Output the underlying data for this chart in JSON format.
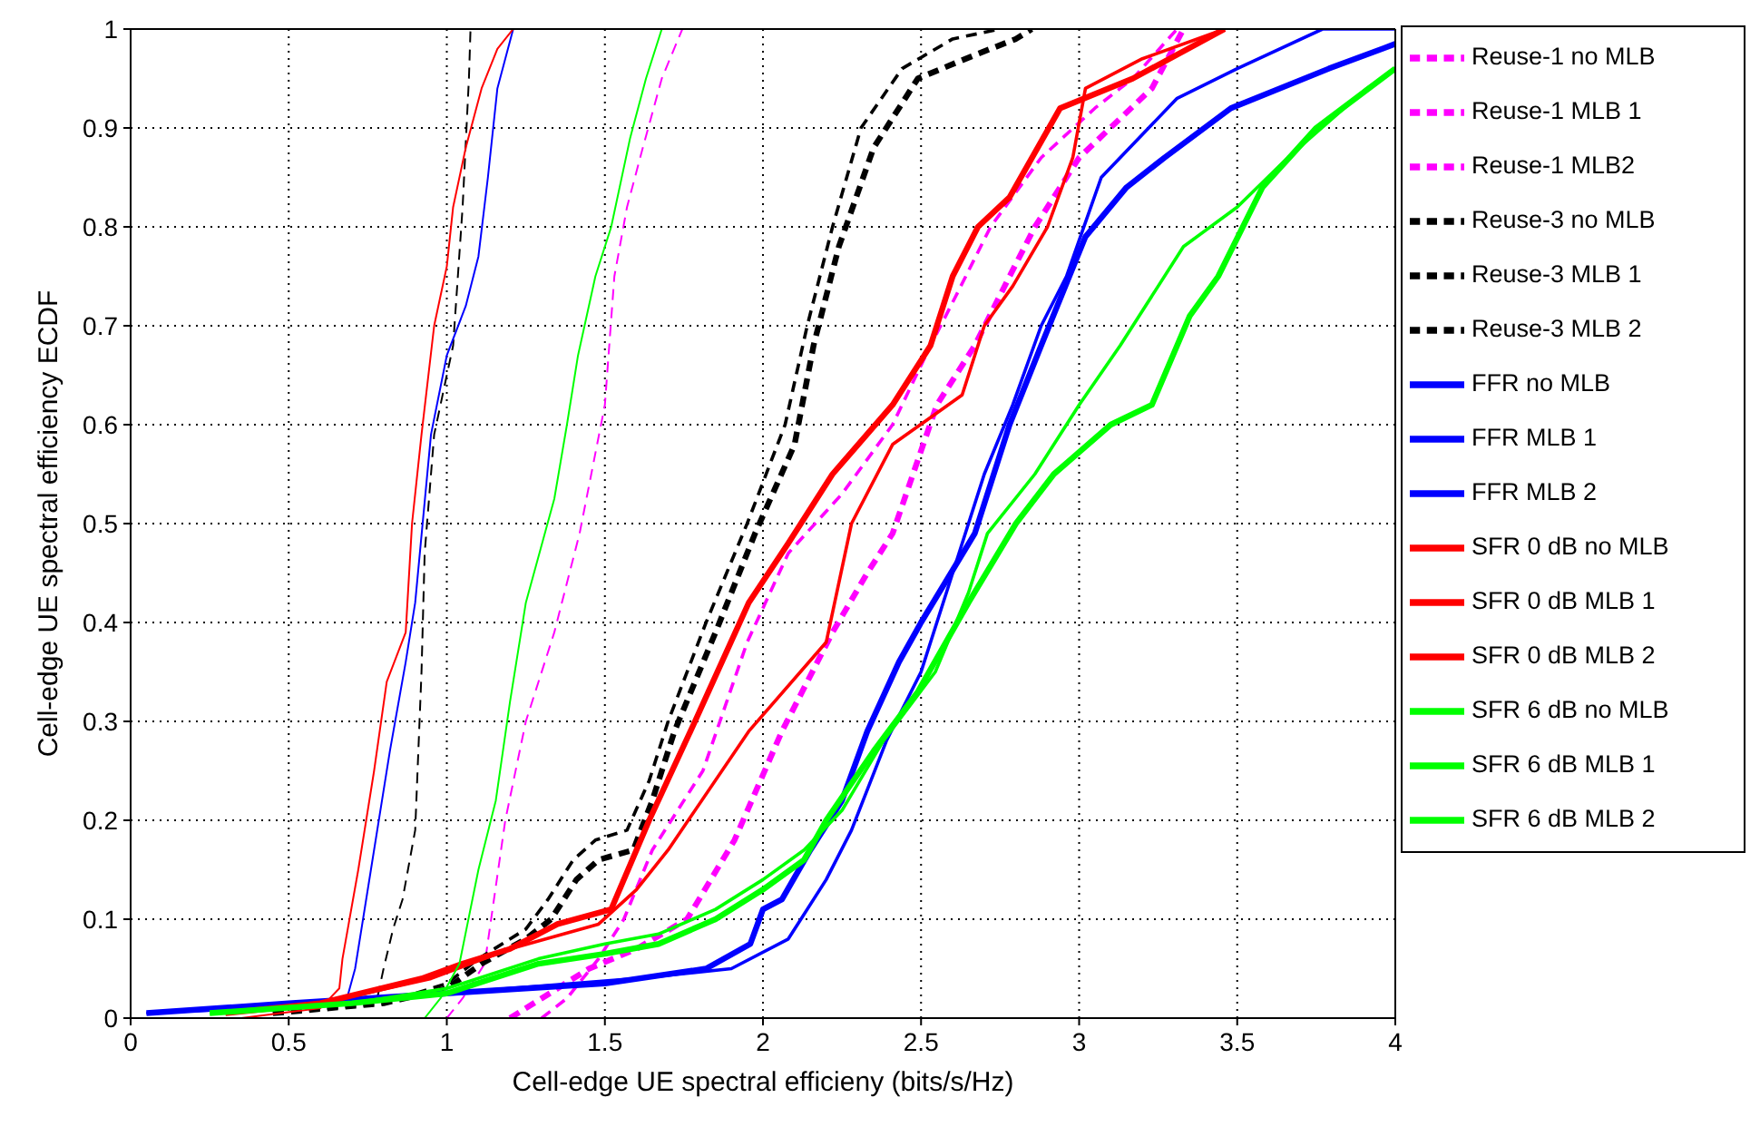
{
  "chart_data": {
    "type": "line",
    "xlabel": "Cell-edge UE spectral efficieny (bits/s/Hz)",
    "ylabel": "Cell-edge UE spectral efficiency ECDF",
    "xlim": [
      0,
      4
    ],
    "xticks": [
      0,
      0.5,
      1,
      1.5,
      2,
      2.5,
      3,
      3.5,
      4
    ],
    "ylim": [
      0,
      1
    ],
    "yticks": [
      0,
      0.1,
      0.2,
      0.3,
      0.4,
      0.5,
      0.6,
      0.7,
      0.8,
      0.9,
      1
    ],
    "grid": true,
    "legend": "top right",
    "marker": "none",
    "series": [
      {
        "name": "Reuse-1 no MLB",
        "color": "#ff00ff",
        "line_style": "dashed",
        "x": [
          1.0,
          1.05,
          1.12,
          1.185,
          1.25,
          1.34,
          1.42,
          1.5,
          1.53,
          1.57,
          1.62,
          1.68,
          1.745
        ],
        "values": [
          0,
          0.02,
          0.055,
          0.2,
          0.3,
          0.39,
          0.49,
          0.62,
          0.75,
          0.82,
          0.88,
          0.95,
          1.0
        ]
      },
      {
        "name": "Reuse-1 MLB 1",
        "color": "#ff00ff",
        "line_style": "dashed",
        "x": [
          1.3,
          1.38,
          1.48,
          1.56,
          1.65,
          1.81,
          1.95,
          2.08,
          2.25,
          2.41,
          2.53,
          2.61,
          2.72,
          2.88,
          3.05,
          3.17,
          3.31
        ],
        "values": [
          0,
          0.02,
          0.06,
          0.1,
          0.17,
          0.25,
          0.38,
          0.47,
          0.53,
          0.6,
          0.68,
          0.73,
          0.8,
          0.87,
          0.92,
          0.95,
          1.0
        ]
      },
      {
        "name": "Reuse-1 MLB2",
        "color": "#ff00ff",
        "line_style": "dashed",
        "x": [
          1.2,
          1.3,
          1.45,
          1.6,
          1.76,
          1.91,
          2.06,
          2.22,
          2.33,
          2.41,
          2.55,
          2.67,
          2.78,
          2.86,
          3.0,
          3.23,
          3.33
        ],
        "values": [
          0,
          0.02,
          0.05,
          0.07,
          0.1,
          0.18,
          0.29,
          0.39,
          0.45,
          0.49,
          0.62,
          0.68,
          0.75,
          0.8,
          0.87,
          0.94,
          1.0
        ]
      },
      {
        "name": "Reuse-3 no MLB",
        "color": "#000000",
        "line_style": "dashed",
        "x": [
          0.5,
          0.78,
          0.8,
          0.83,
          0.86,
          0.9,
          0.92,
          0.93,
          0.96,
          1.02,
          1.05,
          1.07,
          1.075
        ],
        "values": [
          0.01,
          0.02,
          0.05,
          0.09,
          0.12,
          0.19,
          0.35,
          0.47,
          0.59,
          0.68,
          0.82,
          0.95,
          1.0
        ]
      },
      {
        "name": "Reuse-3 MLB 1",
        "color": "#000000",
        "line_style": "dashed",
        "x": [
          0.45,
          0.8,
          1.0,
          1.1,
          1.25,
          1.32,
          1.4,
          1.47,
          1.57,
          1.64,
          1.7,
          1.82,
          1.95,
          2.07,
          2.14,
          2.22,
          2.31,
          2.44,
          2.6,
          2.75
        ],
        "values": [
          0.005,
          0.015,
          0.035,
          0.06,
          0.09,
          0.12,
          0.16,
          0.18,
          0.19,
          0.24,
          0.3,
          0.4,
          0.5,
          0.6,
          0.7,
          0.8,
          0.9,
          0.96,
          0.99,
          1.0
        ]
      },
      {
        "name": "Reuse-3 MLB 2",
        "color": "#000000",
        "line_style": "dashed",
        "x": [
          0.45,
          0.8,
          1.0,
          1.11,
          1.25,
          1.33,
          1.41,
          1.48,
          1.59,
          1.65,
          1.72,
          1.85,
          1.975,
          2.1,
          2.16,
          2.24,
          2.35,
          2.49,
          2.68,
          2.8,
          2.85
        ],
        "values": [
          0.005,
          0.015,
          0.03,
          0.055,
          0.08,
          0.1,
          0.14,
          0.16,
          0.17,
          0.22,
          0.29,
          0.39,
          0.49,
          0.58,
          0.68,
          0.78,
          0.88,
          0.95,
          0.975,
          0.99,
          1.0
        ]
      },
      {
        "name": "FFR no MLB",
        "color": "#0000ff",
        "line_style": "solid",
        "x": [
          0.05,
          0.5,
          0.68,
          0.71,
          0.76,
          0.82,
          0.87,
          0.9,
          0.95,
          1.0,
          1.06,
          1.1,
          1.13,
          1.16,
          1.21
        ],
        "values": [
          0.005,
          0.01,
          0.015,
          0.05,
          0.15,
          0.27,
          0.36,
          0.42,
          0.59,
          0.67,
          0.72,
          0.77,
          0.85,
          0.94,
          1.0
        ]
      },
      {
        "name": "FFR MLB 1",
        "color": "#0000ff",
        "line_style": "solid",
        "x": [
          0.05,
          0.6,
          1.2,
          1.6,
          1.9,
          2.08,
          2.2,
          2.28,
          2.39,
          2.5,
          2.57,
          2.7,
          2.79,
          2.88,
          2.96,
          3.07,
          3.31,
          3.5,
          3.77,
          4.0
        ],
        "values": [
          0.005,
          0.015,
          0.03,
          0.04,
          0.05,
          0.08,
          0.14,
          0.19,
          0.28,
          0.35,
          0.42,
          0.55,
          0.62,
          0.7,
          0.75,
          0.85,
          0.93,
          0.96,
          1.0,
          1.0
        ]
      },
      {
        "name": "FFR MLB 2",
        "color": "#0000ff",
        "line_style": "solid",
        "x": [
          0.05,
          0.5,
          1.0,
          1.5,
          1.82,
          1.96,
          2.0,
          2.06,
          2.15,
          2.25,
          2.33,
          2.43,
          2.5,
          2.67,
          2.78,
          2.88,
          3.02,
          3.15,
          3.27,
          3.48,
          3.79,
          4.0
        ],
        "values": [
          0.005,
          0.015,
          0.025,
          0.035,
          0.05,
          0.075,
          0.11,
          0.12,
          0.17,
          0.22,
          0.29,
          0.36,
          0.4,
          0.49,
          0.6,
          0.68,
          0.79,
          0.84,
          0.87,
          0.92,
          0.96,
          0.985
        ]
      },
      {
        "name": "SFR 0 dB no MLB",
        "color": "#ff0000",
        "line_style": "solid",
        "x": [
          0.35,
          0.6,
          0.66,
          0.67,
          0.72,
          0.77,
          0.81,
          0.87,
          0.89,
          0.92,
          0.96,
          1.0,
          1.02,
          1.06,
          1.11,
          1.16,
          1.21
        ],
        "values": [
          0,
          0.01,
          0.03,
          0.06,
          0.15,
          0.25,
          0.34,
          0.39,
          0.5,
          0.59,
          0.7,
          0.76,
          0.82,
          0.88,
          0.94,
          0.98,
          1.0
        ]
      },
      {
        "name": "SFR 0 dB MLB 1",
        "color": "#ff0000",
        "line_style": "solid",
        "x": [
          0.3,
          0.6,
          0.95,
          1.2,
          1.48,
          1.6,
          1.7,
          1.955,
          2.2,
          2.28,
          2.41,
          2.63,
          2.7,
          2.79,
          2.9,
          2.98,
          3.02,
          3.2,
          3.46
        ],
        "values": [
          0.005,
          0.015,
          0.04,
          0.07,
          0.095,
          0.13,
          0.17,
          0.29,
          0.38,
          0.5,
          0.58,
          0.63,
          0.7,
          0.74,
          0.8,
          0.87,
          0.94,
          0.97,
          1.0
        ]
      },
      {
        "name": "SFR 0 dB MLB 2",
        "color": "#ff0000",
        "line_style": "solid",
        "x": [
          0.3,
          0.6,
          0.92,
          1.05,
          1.2,
          1.35,
          1.52,
          1.64,
          1.785,
          1.955,
          2.08,
          2.22,
          2.41,
          2.53,
          2.6,
          2.68,
          2.78,
          2.94,
          3.17,
          3.46
        ],
        "values": [
          0.005,
          0.015,
          0.04,
          0.055,
          0.07,
          0.095,
          0.11,
          0.2,
          0.3,
          0.42,
          0.48,
          0.55,
          0.62,
          0.68,
          0.75,
          0.8,
          0.83,
          0.92,
          0.95,
          1.0
        ]
      },
      {
        "name": "SFR 6 dB no MLB",
        "color": "#00ff00",
        "line_style": "solid",
        "x": [
          0.93,
          0.98,
          1.04,
          1.1,
          1.155,
          1.2,
          1.25,
          1.34,
          1.38,
          1.415,
          1.47,
          1.52,
          1.58,
          1.63,
          1.68
        ],
        "values": [
          0,
          0.02,
          0.055,
          0.15,
          0.22,
          0.32,
          0.42,
          0.525,
          0.6,
          0.67,
          0.75,
          0.8,
          0.89,
          0.95,
          1.0
        ]
      },
      {
        "name": "SFR 6 dB MLB 1",
        "color": "#00ff00",
        "line_style": "solid",
        "x": [
          0.25,
          0.7,
          1.0,
          1.29,
          1.5,
          1.67,
          1.85,
          2.0,
          2.13,
          2.25,
          2.38,
          2.545,
          2.65,
          2.71,
          2.86,
          3.0,
          3.13,
          3.33,
          3.5,
          3.66,
          3.91,
          4.0
        ],
        "values": [
          0.005,
          0.015,
          0.03,
          0.06,
          0.075,
          0.085,
          0.11,
          0.14,
          0.17,
          0.21,
          0.28,
          0.35,
          0.43,
          0.49,
          0.55,
          0.62,
          0.68,
          0.78,
          0.82,
          0.87,
          0.94,
          0.96
        ]
      },
      {
        "name": "SFR 6 dB MLB 2",
        "color": "#00ff00",
        "line_style": "solid",
        "x": [
          0.25,
          0.7,
          1.0,
          1.29,
          1.5,
          1.67,
          1.85,
          2.0,
          2.13,
          2.2,
          2.35,
          2.49,
          2.65,
          2.8,
          2.92,
          3.1,
          3.23,
          3.35,
          3.44,
          3.58,
          3.75,
          4.0
        ],
        "values": [
          0.005,
          0.015,
          0.025,
          0.055,
          0.065,
          0.075,
          0.1,
          0.13,
          0.16,
          0.2,
          0.27,
          0.33,
          0.42,
          0.5,
          0.55,
          0.6,
          0.62,
          0.71,
          0.75,
          0.84,
          0.9,
          0.96
        ]
      }
    ]
  }
}
